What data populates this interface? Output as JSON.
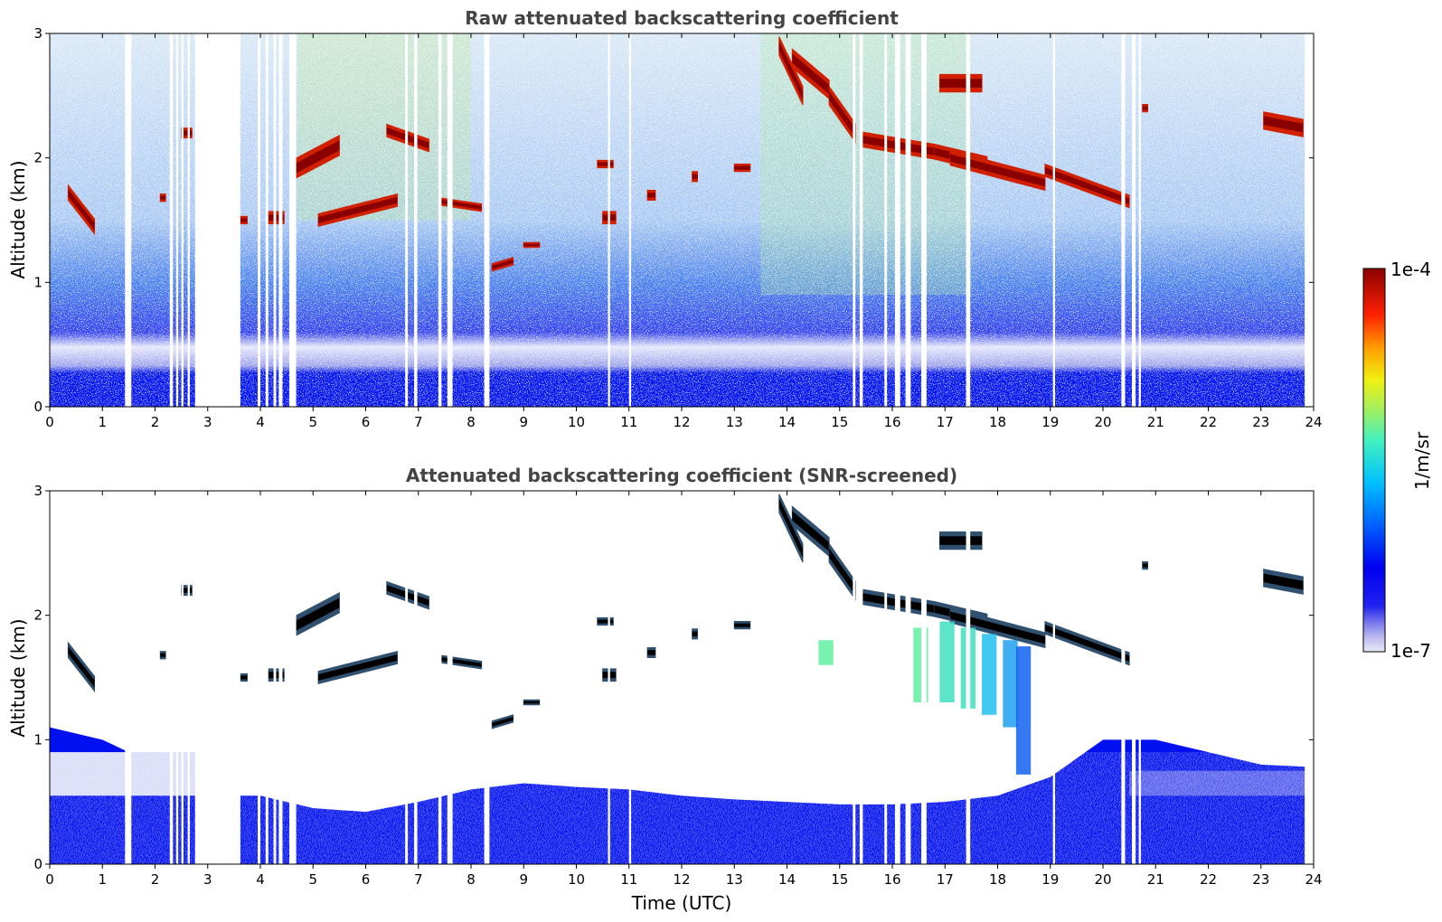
{
  "chart_data": [
    {
      "type": "heatmap",
      "title": "Raw attenuated backscattering coefficient",
      "xlabel": "",
      "ylabel": "Altitude (km)",
      "xlim": [
        0,
        24
      ],
      "ylim": [
        0,
        3
      ],
      "x_ticks": [
        "0",
        "1",
        "2",
        "3",
        "4",
        "5",
        "6",
        "7",
        "8",
        "9",
        "10",
        "11",
        "12",
        "13",
        "14",
        "15",
        "16",
        "17",
        "18",
        "19",
        "20",
        "21",
        "22",
        "23",
        "24"
      ],
      "y_ticks": [
        "0",
        "1",
        "2",
        "3"
      ],
      "data_gaps_utc": [
        [
          1.43,
          1.55
        ],
        [
          2.28,
          2.34
        ],
        [
          2.4,
          2.44
        ],
        [
          2.5,
          2.54
        ],
        [
          2.62,
          2.66
        ],
        [
          2.76,
          3.62
        ],
        [
          3.95,
          4.0
        ],
        [
          4.1,
          4.15
        ],
        [
          4.25,
          4.3
        ],
        [
          4.35,
          4.42
        ],
        [
          4.55,
          4.68
        ],
        [
          6.75,
          6.8
        ],
        [
          6.92,
          6.98
        ],
        [
          7.38,
          7.44
        ],
        [
          7.55,
          7.65
        ],
        [
          8.25,
          8.35
        ],
        [
          10.6,
          10.64
        ],
        [
          11.0,
          11.04
        ],
        [
          15.25,
          15.3
        ],
        [
          15.38,
          15.44
        ],
        [
          15.85,
          15.9
        ],
        [
          16.05,
          16.15
        ],
        [
          16.25,
          16.35
        ],
        [
          16.55,
          16.65
        ],
        [
          17.4,
          17.48
        ],
        [
          19.05,
          19.09
        ],
        [
          20.35,
          20.42
        ],
        [
          20.55,
          20.62
        ],
        [
          20.68,
          20.72
        ]
      ],
      "layers": [
        {
          "x": [
            0.35,
            0.85
          ],
          "y": [
            1.72,
            1.45
          ],
          "thickness": 0.12
        },
        {
          "x": [
            2.1,
            2.2
          ],
          "y": [
            1.68,
            1.68
          ],
          "thickness": 0.06
        },
        {
          "x": [
            2.5,
            2.7
          ],
          "y": [
            2.2,
            2.2
          ],
          "thickness": 0.08
        },
        {
          "x": [
            3.6,
            3.75
          ],
          "y": [
            1.5,
            1.5
          ],
          "thickness": 0.06
        },
        {
          "x": [
            4.15,
            4.45
          ],
          "y": [
            1.52,
            1.52
          ],
          "thickness": 0.1
        },
        {
          "x": [
            4.6,
            5.5
          ],
          "y": [
            1.9,
            2.1
          ],
          "thickness": 0.16
        },
        {
          "x": [
            5.1,
            6.6
          ],
          "y": [
            1.5,
            1.66
          ],
          "thickness": 0.1
        },
        {
          "x": [
            6.4,
            7.2
          ],
          "y": [
            2.22,
            2.1
          ],
          "thickness": 0.1
        },
        {
          "x": [
            7.4,
            8.2
          ],
          "y": [
            1.65,
            1.6
          ],
          "thickness": 0.06
        },
        {
          "x": [
            8.4,
            8.8
          ],
          "y": [
            1.12,
            1.17
          ],
          "thickness": 0.06
        },
        {
          "x": [
            9.0,
            9.3
          ],
          "y": [
            1.3,
            1.3
          ],
          "thickness": 0.04
        },
        {
          "x": [
            10.4,
            10.7
          ],
          "y": [
            1.95,
            1.95
          ],
          "thickness": 0.06
        },
        {
          "x": [
            10.5,
            10.75
          ],
          "y": [
            1.52,
            1.52
          ],
          "thickness": 0.1
        },
        {
          "x": [
            11.35,
            11.5
          ],
          "y": [
            1.7,
            1.7
          ],
          "thickness": 0.08
        },
        {
          "x": [
            12.2,
            12.3
          ],
          "y": [
            1.85,
            1.85
          ],
          "thickness": 0.08
        },
        {
          "x": [
            13.0,
            13.3
          ],
          "y": [
            1.92,
            1.92
          ],
          "thickness": 0.06
        },
        {
          "x": [
            13.85,
            14.3
          ],
          "y": [
            2.9,
            2.5
          ],
          "thickness": 0.15
        },
        {
          "x": [
            14.1,
            14.8
          ],
          "y": [
            2.8,
            2.55
          ],
          "thickness": 0.15
        },
        {
          "x": [
            14.8,
            15.3
          ],
          "y": [
            2.5,
            2.2
          ],
          "thickness": 0.15
        },
        {
          "x": [
            15.4,
            16.8
          ],
          "y": [
            2.15,
            2.05
          ],
          "thickness": 0.12
        },
        {
          "x": [
            16.8,
            17.8
          ],
          "y": [
            2.05,
            1.95
          ],
          "thickness": 0.12
        },
        {
          "x": [
            17.1,
            18.9
          ],
          "y": [
            2.0,
            1.8
          ],
          "thickness": 0.12
        },
        {
          "x": [
            18.9,
            20.5
          ],
          "y": [
            1.9,
            1.65
          ],
          "thickness": 0.1
        },
        {
          "x": [
            16.9,
            17.7
          ],
          "y": [
            2.6,
            2.6
          ],
          "thickness": 0.14
        },
        {
          "x": [
            20.75,
            20.85
          ],
          "y": [
            2.4,
            2.4
          ],
          "thickness": 0.06
        },
        {
          "x": [
            23.05,
            23.8
          ],
          "y": [
            2.3,
            2.24
          ],
          "thickness": 0.14
        }
      ]
    },
    {
      "type": "heatmap",
      "title": "Attenuated backscattering coefficient (SNR-screened)",
      "xlabel": "Time (UTC)",
      "ylabel": "Altitude (km)",
      "xlim": [
        0,
        24
      ],
      "ylim": [
        0,
        3
      ],
      "x_ticks": [
        "0",
        "1",
        "2",
        "3",
        "4",
        "5",
        "6",
        "7",
        "8",
        "9",
        "10",
        "11",
        "12",
        "13",
        "14",
        "15",
        "16",
        "17",
        "18",
        "19",
        "20",
        "21",
        "22",
        "23",
        "24"
      ],
      "y_ticks": [
        "0",
        "1",
        "2",
        "3"
      ],
      "boundary_layer_top_km": [
        [
          0,
          1.1
        ],
        [
          1,
          1.0
        ],
        [
          2,
          0.8
        ],
        [
          3,
          0.55
        ],
        [
          4,
          0.55
        ],
        [
          5,
          0.45
        ],
        [
          6,
          0.42
        ],
        [
          7,
          0.5
        ],
        [
          8,
          0.6
        ],
        [
          9,
          0.65
        ],
        [
          10,
          0.62
        ],
        [
          11,
          0.6
        ],
        [
          12,
          0.55
        ],
        [
          13,
          0.52
        ],
        [
          14,
          0.5
        ],
        [
          15,
          0.48
        ],
        [
          16,
          0.48
        ],
        [
          17,
          0.5
        ],
        [
          18,
          0.55
        ],
        [
          19,
          0.7
        ],
        [
          20,
          1.0
        ],
        [
          21,
          1.0
        ],
        [
          22,
          0.9
        ],
        [
          23,
          0.8
        ],
        [
          24,
          0.78
        ]
      ]
    }
  ],
  "colorbar": {
    "label": "1/m/sr",
    "max_label": "1e-4",
    "min_label": "1e-7",
    "colors": [
      "#e8e8f8",
      "#c8c8f0",
      "#a0a0ec",
      "#7070ec",
      "#3030f0",
      "#0000f0",
      "#0030ff",
      "#0080ff",
      "#00c0ff",
      "#20e0e0",
      "#60f0a0",
      "#a0f060",
      "#e0f020",
      "#ffd000",
      "#ff8000",
      "#ff3000",
      "#e00000",
      "#900000"
    ]
  }
}
